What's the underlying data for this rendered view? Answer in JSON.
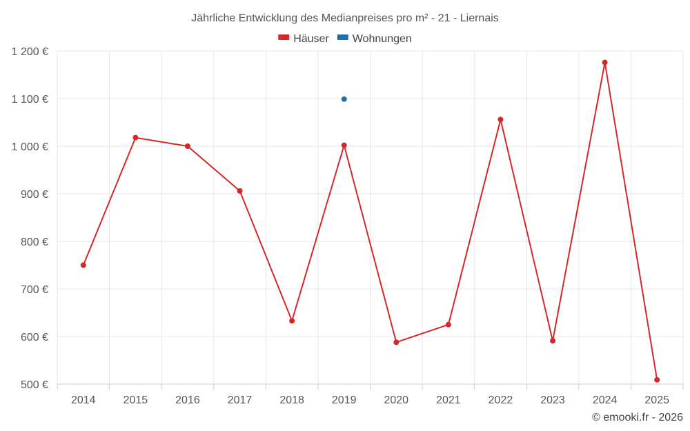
{
  "chart_data": {
    "type": "line",
    "title": "Jährliche Entwicklung des Medianpreises pro m² - 21 - Liernais",
    "categories": [
      "2014",
      "2015",
      "2016",
      "2017",
      "2018",
      "2019",
      "2020",
      "2021",
      "2022",
      "2023",
      "2024",
      "2025"
    ],
    "series": [
      {
        "name": "Häuser",
        "color": "#d62728",
        "values": [
          750,
          1018,
          1000,
          906,
          633,
          1002,
          588,
          625,
          1056,
          591,
          1176,
          509
        ]
      },
      {
        "name": "Wohnungen",
        "color": "#1f6fa8",
        "values": [
          null,
          null,
          null,
          null,
          null,
          1099,
          null,
          null,
          null,
          null,
          null,
          null
        ]
      }
    ],
    "ylim": [
      500,
      1200
    ],
    "yticks": [
      500,
      600,
      700,
      800,
      900,
      1000,
      1100,
      1200
    ],
    "ytick_labels": [
      "500 €",
      "600 €",
      "700 €",
      "800 €",
      "900 €",
      "1 000 €",
      "1 100 €",
      "1 200 €"
    ],
    "xlabel": "",
    "ylabel": "",
    "grid": true,
    "legend_position": "top-center"
  },
  "credit": "© emooki.fr - 2026"
}
